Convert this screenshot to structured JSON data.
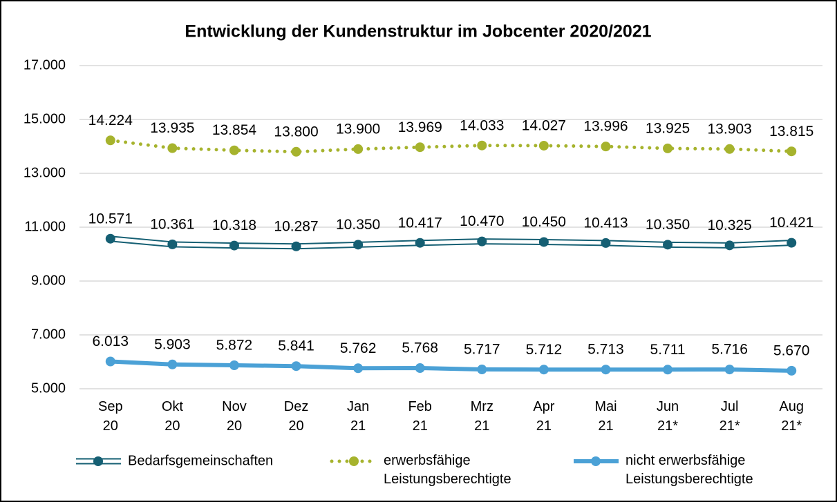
{
  "chart_data": {
    "type": "line",
    "title": "Entwicklung der Kundenstruktur im Jobcenter 2020/2021",
    "categories": [
      "Sep 20",
      "Okt 20",
      "Nov 20",
      "Dez 20",
      "Jan 21",
      "Feb 21",
      "Mrz 21",
      "Apr 21",
      "Mai 21",
      "Jun 21*",
      "Jul 21*",
      "Aug 21*"
    ],
    "ylim": [
      5000,
      17000
    ],
    "yticks": [
      {
        "value": 5000,
        "label": "5.000"
      },
      {
        "value": 7000,
        "label": "7.000"
      },
      {
        "value": 9000,
        "label": "9.000"
      },
      {
        "value": 11000,
        "label": "11.000"
      },
      {
        "value": 13000,
        "label": "13.000"
      },
      {
        "value": 15000,
        "label": "15.000"
      },
      {
        "value": 17000,
        "label": "17.000"
      }
    ],
    "grid": true,
    "legend": "bottom",
    "series": [
      {
        "name": "Bedarfsgemeinschaften",
        "color": "#155f73",
        "style": "double",
        "values": [
          10571,
          10361,
          10318,
          10287,
          10350,
          10417,
          10470,
          10450,
          10413,
          10350,
          10325,
          10421
        ],
        "value_labels": [
          "10.571",
          "10.361",
          "10.318",
          "10.287",
          "10.350",
          "10.417",
          "10.470",
          "10.450",
          "10.413",
          "10.350",
          "10.325",
          "10.421"
        ]
      },
      {
        "name": "erwerbsfähige Leistungsberechtigte",
        "color": "#a6b32d",
        "style": "dotted",
        "values": [
          14224,
          13935,
          13854,
          13800,
          13900,
          13969,
          14033,
          14027,
          13996,
          13925,
          13903,
          13815
        ],
        "value_labels": [
          "14.224",
          "13.935",
          "13.854",
          "13.800",
          "13.900",
          "13.969",
          "14.033",
          "14.027",
          "13.996",
          "13.925",
          "13.903",
          "13.815"
        ]
      },
      {
        "name": "nicht erwerbsfähige Leistungsberechtigte",
        "color": "#4ba1d6",
        "style": "solid",
        "values": [
          6013,
          5903,
          5872,
          5841,
          5762,
          5768,
          5717,
          5712,
          5713,
          5711,
          5716,
          5670
        ],
        "value_labels": [
          "6.013",
          "5.903",
          "5.872",
          "5.841",
          "5.762",
          "5.768",
          "5.717",
          "5.712",
          "5.713",
          "5.711",
          "5.716",
          "5.670"
        ]
      }
    ]
  }
}
